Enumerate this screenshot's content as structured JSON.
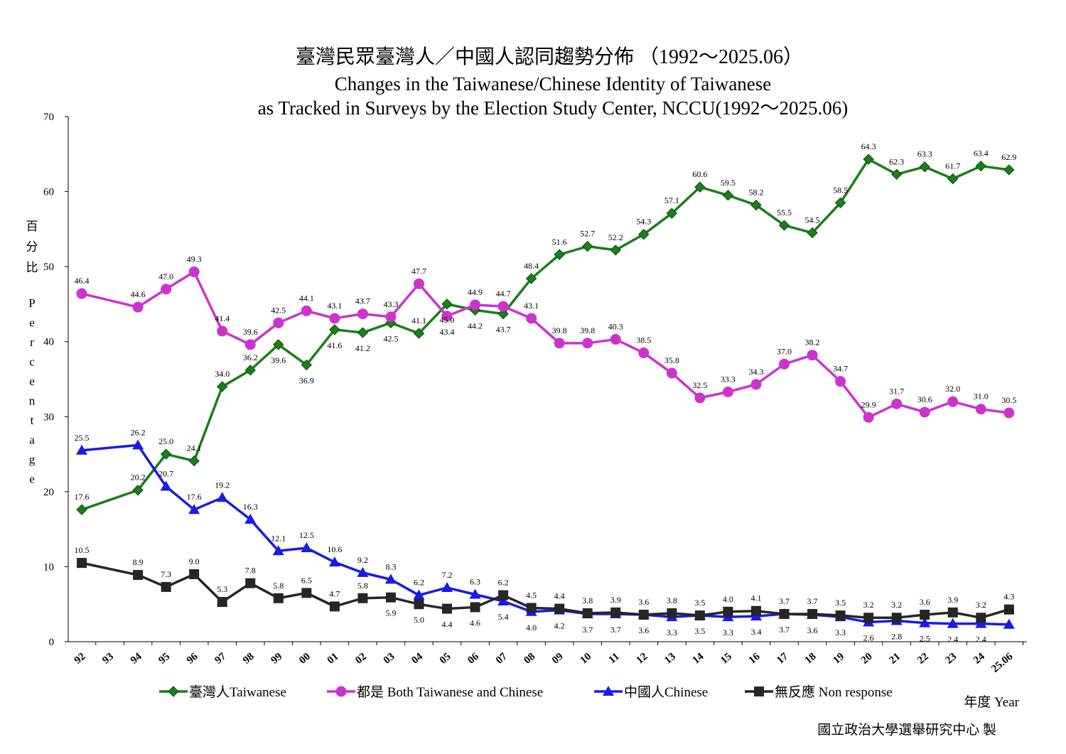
{
  "chart_data": {
    "type": "line",
    "title": "臺灣民眾臺灣人／中國人認同趨勢分佈 （1992～2025.06）",
    "subtitle_line1": "Changes in the Taiwanese/Chinese Identity of Taiwanese",
    "subtitle_line2": "as Tracked in Surveys by the Election Study Center, NCCU(1992～2025.06)",
    "ylabel_zh": [
      "百",
      "分",
      "比"
    ],
    "ylabel_en": [
      "P",
      "e",
      "r",
      "c",
      "e",
      "n",
      "t",
      "a",
      "g",
      "e"
    ],
    "xlabel": "年度 Year",
    "ylim": [
      0,
      70
    ],
    "yticks": [
      "0",
      "10",
      "20",
      "30",
      "40",
      "50",
      "60",
      "70"
    ],
    "categories": [
      "92",
      "93",
      "94",
      "95",
      "96",
      "97",
      "98",
      "99",
      "00",
      "01",
      "02",
      "03",
      "04",
      "05",
      "06",
      "07",
      "08",
      "09",
      "10",
      "11",
      "12",
      "13",
      "14",
      "15",
      "16",
      "17",
      "18",
      "19",
      "20",
      "21",
      "22",
      "23",
      "24",
      "25.06"
    ],
    "series": [
      {
        "name": "臺灣人Taiwanese",
        "color": "#1a7f1a",
        "marker": "diamond",
        "values": [
          17.6,
          null,
          20.2,
          25.0,
          24.1,
          34.0,
          36.2,
          39.6,
          36.9,
          41.6,
          41.2,
          42.5,
          41.1,
          45.0,
          44.2,
          43.7,
          48.4,
          51.6,
          52.7,
          52.2,
          54.3,
          57.1,
          60.6,
          59.5,
          58.2,
          55.5,
          54.5,
          58.5,
          64.3,
          62.3,
          63.3,
          61.7,
          63.4,
          62.9
        ],
        "labels": [
          "17.6",
          null,
          "20.2",
          "25.0",
          "24.1",
          "34.0",
          "36.2",
          "39.6",
          "36.9",
          "41.6",
          "41.2",
          "42.5",
          "41.1",
          "45.0",
          "44.2",
          "43.7",
          "48.4",
          "51.6",
          "52.7",
          "52.2",
          "54.3",
          "57.1",
          "60.6",
          "59.5",
          "58.2",
          "55.5",
          "54.5",
          "58.5",
          "64.3",
          "62.3",
          "63.3",
          "61.7",
          "63.4",
          "62.9"
        ]
      },
      {
        "name": "都是 Both Taiwanese and Chinese",
        "color": "#cc33cc",
        "marker": "circle",
        "values": [
          46.4,
          null,
          44.6,
          47.0,
          49.3,
          41.4,
          39.6,
          42.5,
          44.1,
          43.1,
          43.7,
          43.3,
          47.7,
          43.4,
          44.9,
          44.7,
          43.1,
          39.8,
          39.8,
          40.3,
          38.5,
          35.8,
          32.5,
          33.3,
          34.3,
          37.0,
          38.2,
          34.7,
          29.9,
          31.7,
          30.6,
          32.0,
          31.0,
          30.5
        ],
        "labels": [
          "46.4",
          null,
          "44.6",
          "47.0",
          "49.3",
          "41.4",
          "39.6",
          "42.5",
          "44.1",
          "43.1",
          "43.7",
          "43.3",
          "47.7",
          "43.4",
          "44.9",
          "44.7",
          "43.1",
          "39.8",
          "39.8",
          "40.3",
          "38.5",
          "35.8",
          "32.5",
          "33.3",
          "34.3",
          "37.0",
          "38.2",
          "34.7",
          "29.9",
          "31.7",
          "30.6",
          "32.0",
          "31.0",
          "30.5"
        ]
      },
      {
        "name": "中國人Chinese",
        "color": "#1a1ae6",
        "marker": "triangle",
        "values": [
          25.5,
          null,
          26.2,
          20.7,
          17.6,
          19.2,
          16.3,
          12.1,
          12.5,
          10.6,
          9.2,
          8.3,
          6.2,
          7.2,
          6.3,
          5.4,
          4.0,
          4.2,
          3.7,
          3.7,
          3.6,
          3.3,
          3.5,
          3.3,
          3.4,
          3.7,
          3.6,
          3.3,
          2.6,
          2.8,
          2.5,
          2.4,
          2.4,
          2.3
        ],
        "labels": [
          "25.5",
          null,
          "26.2",
          "20.7",
          "17.6",
          "19.2",
          "16.3",
          "12.1",
          "12.5",
          "10.6",
          "9.2",
          "8.3",
          "6.2",
          "7.2",
          "6.3",
          "5.4",
          "4.0",
          "4.2",
          "3.7",
          "3.7",
          "3.6",
          "3.3",
          "3.5",
          "3.3",
          "3.4",
          "3.7",
          "3.6",
          "3.3",
          "2.6",
          "2.8",
          "2.5",
          "2.4",
          "2.4",
          "2.3"
        ]
      },
      {
        "name": "無反應 Non response",
        "color": "#262626",
        "marker": "square",
        "values": [
          10.5,
          null,
          8.9,
          7.3,
          9.0,
          5.3,
          7.8,
          5.8,
          6.5,
          4.7,
          5.8,
          5.9,
          5.0,
          4.4,
          4.6,
          6.2,
          4.5,
          4.4,
          3.8,
          3.9,
          3.6,
          3.8,
          3.5,
          4.0,
          4.1,
          3.7,
          3.7,
          3.5,
          3.2,
          3.2,
          3.6,
          3.9,
          3.2,
          4.3
        ],
        "labels": [
          "10.5",
          null,
          "8.9",
          "7.3",
          "9.0",
          "5.3",
          "7.8",
          "5.8",
          "6.5",
          "4.7",
          "5.8",
          "5.9",
          "5.0",
          "4.4",
          "4.6",
          "6.2",
          "4.5",
          "4.4",
          "3.8",
          "3.9",
          "3.6",
          "3.8",
          "3.5",
          "4.0",
          "4.1",
          "3.7",
          "3.7",
          "3.5",
          "3.2",
          "3.2",
          "3.6",
          "3.9",
          "3.2",
          "4.3"
        ]
      }
    ],
    "legend_position": "bottom",
    "grid": false
  },
  "footer": "國立政治大學選舉研究中心 製"
}
